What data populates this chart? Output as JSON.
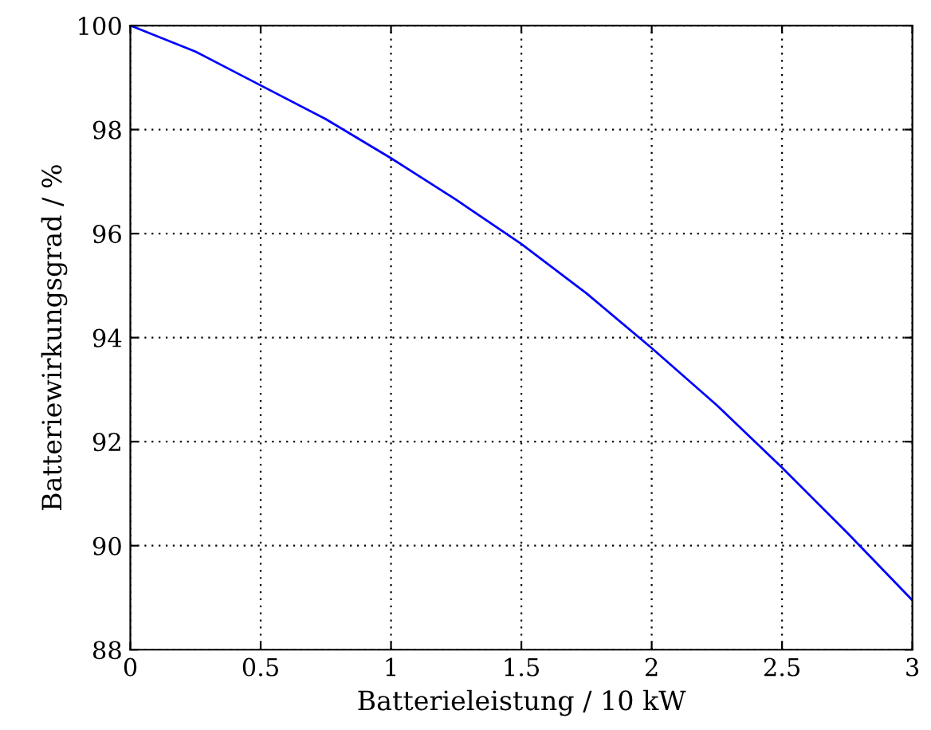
{
  "chart_data": {
    "type": "line",
    "xlabel": "Batterieleistung / 10 kW",
    "ylabel": "Batteriewirkungsgrad / %",
    "x": [
      0,
      0.25,
      0.5,
      0.75,
      1,
      1.25,
      1.5,
      1.75,
      2,
      2.25,
      2.5,
      2.75,
      3
    ],
    "series": [
      {
        "color": "#0000ff",
        "values": [
          100,
          99.5,
          98.85,
          98.2,
          97.45,
          96.65,
          95.8,
          94.85,
          93.8,
          92.7,
          91.5,
          90.25,
          88.95
        ]
      }
    ],
    "xlim": [
      0,
      3
    ],
    "ylim": [
      88,
      100
    ],
    "xticks": [
      0,
      0.5,
      1,
      1.5,
      2,
      2.5,
      3
    ],
    "yticks": [
      88,
      90,
      92,
      94,
      96,
      98,
      100
    ],
    "grid": true,
    "marker": "none",
    "line_style": "solid"
  }
}
